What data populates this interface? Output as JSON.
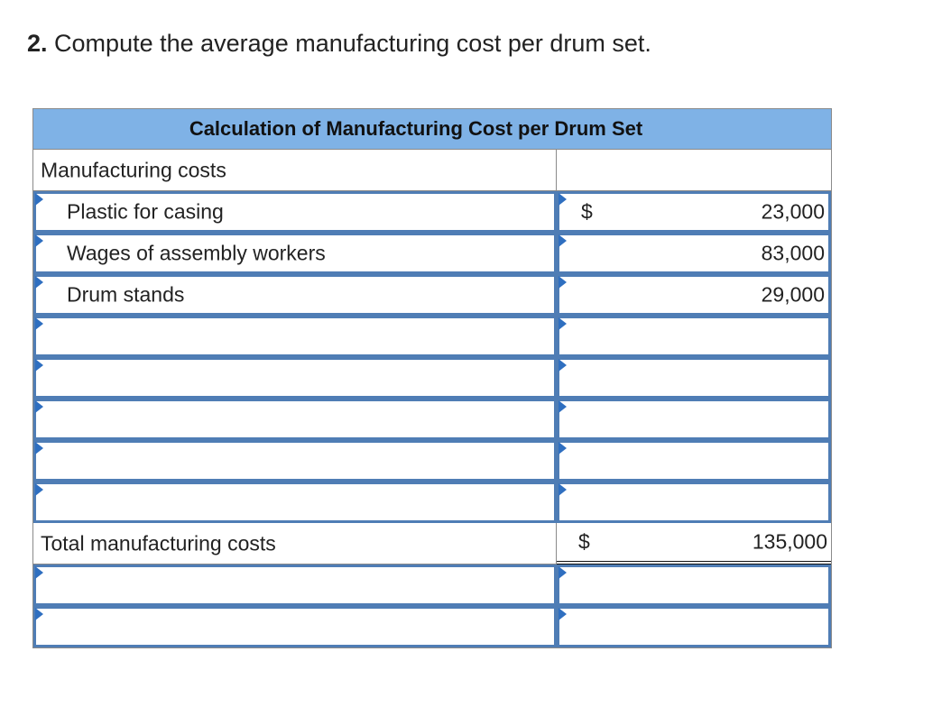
{
  "question": {
    "number": "2.",
    "text": "Compute the average manufacturing cost per drum set."
  },
  "table": {
    "title": "Calculation of Manufacturing Cost per Drum Set",
    "section_label": "Manufacturing costs",
    "rows": [
      {
        "label": "Plastic for casing",
        "dollar": "$",
        "amount": "23,000"
      },
      {
        "label": "Wages of assembly workers",
        "dollar": "",
        "amount": "83,000"
      },
      {
        "label": "Drum stands",
        "dollar": "",
        "amount": "29,000"
      },
      {
        "label": "",
        "dollar": "",
        "amount": ""
      },
      {
        "label": "",
        "dollar": "",
        "amount": ""
      },
      {
        "label": "",
        "dollar": "",
        "amount": ""
      },
      {
        "label": "",
        "dollar": "",
        "amount": ""
      },
      {
        "label": "",
        "dollar": "",
        "amount": ""
      }
    ],
    "total": {
      "label": "Total manufacturing costs",
      "dollar": "$",
      "amount": "135,000"
    },
    "extra_rows": [
      {
        "label": "",
        "dollar": "",
        "amount": ""
      },
      {
        "label": "",
        "dollar": "",
        "amount": ""
      }
    ]
  },
  "colors": {
    "header_bg": "#7fb2e6",
    "input_border": "#4f7db5",
    "marker": "#2f6fc0"
  }
}
